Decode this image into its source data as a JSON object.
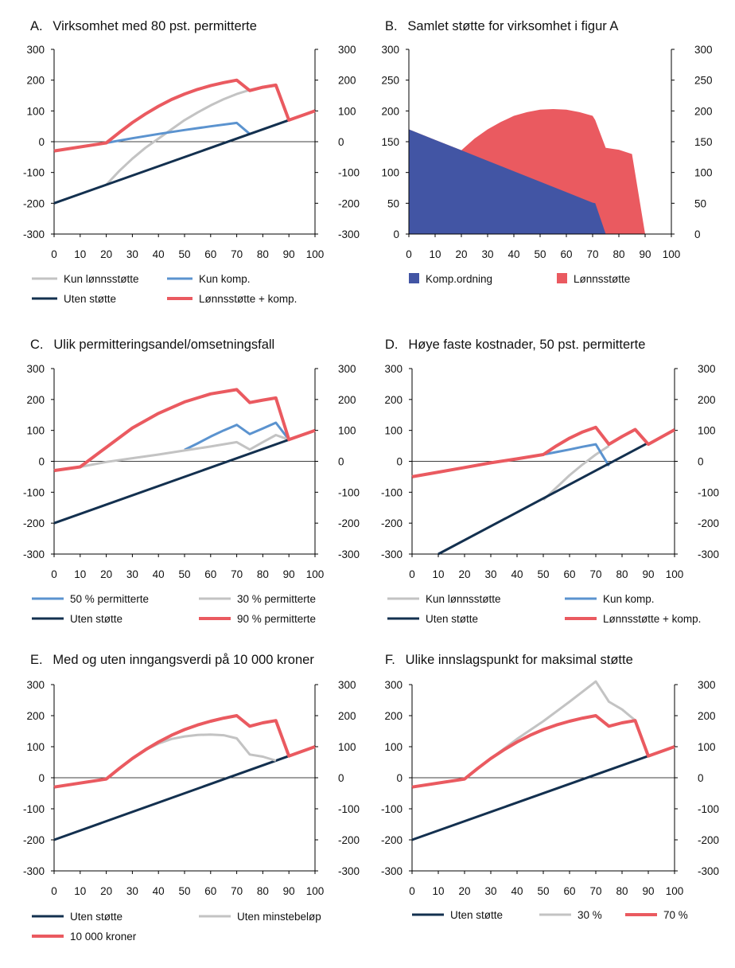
{
  "colors": {
    "light_blue": "#5b93cf",
    "gray": "#c3c3c3",
    "dark_navy": "#13304f",
    "red": "#ea5a60",
    "komp_blue": "#4255a4",
    "axis": "#000000"
  },
  "chart_data": [
    {
      "id": "A",
      "type": "line",
      "title": "A.  Virksomhet med 80 pst. permitterte",
      "x_ticks": [
        "0",
        "10",
        "20",
        "30",
        "40",
        "50",
        "60",
        "70",
        "80",
        "90",
        "100"
      ],
      "y_ticks_left": [
        "300",
        "200",
        "100",
        "0",
        "-100",
        "-200",
        "-300"
      ],
      "y_ticks_right": [
        "300",
        "200",
        "100",
        "0",
        "-100",
        "-200",
        "-300"
      ],
      "xlim": [
        0,
        100
      ],
      "ylim": [
        -300,
        300
      ],
      "zero_line": true,
      "series": [
        {
          "key": "s_gray",
          "name": "Kun lønnsstøtte",
          "color": "#c3c3c3",
          "x": [
            20,
            25,
            30,
            35,
            40,
            45,
            50,
            55,
            60,
            65,
            70,
            75,
            80,
            85,
            90
          ],
          "y": [
            -140,
            -95,
            -55,
            -20,
            10,
            40,
            70,
            95,
            118,
            138,
            155,
            168,
            178,
            182,
            70
          ]
        },
        {
          "key": "s_blue",
          "name": "Kun komp.",
          "color": "#5b93cf",
          "x": [
            20,
            30,
            40,
            50,
            60,
            70,
            75
          ],
          "y": [
            -4,
            11,
            25,
            38,
            50,
            61,
            25
          ]
        },
        {
          "key": "s_navy",
          "name": "Uten støtte",
          "color": "#13304f",
          "x": [
            0,
            100
          ],
          "y": [
            -200,
            100
          ]
        },
        {
          "key": "s_red",
          "name": "Lønnsstøtte + komp.",
          "color": "#ea5a60",
          "x": [
            0,
            20,
            25,
            30,
            35,
            40,
            45,
            50,
            55,
            60,
            65,
            70,
            75,
            80,
            85,
            90,
            100
          ],
          "y": [
            -30,
            -4,
            30,
            62,
            90,
            115,
            137,
            155,
            170,
            182,
            192,
            200,
            166,
            177,
            184,
            70,
            100
          ]
        }
      ],
      "legend": [
        {
          "key": "s_gray",
          "label": "Kun lønnsstøtte"
        },
        {
          "key": "s_blue",
          "label": "Kun komp."
        },
        {
          "key": "s_navy",
          "label": "Uten støtte"
        },
        {
          "key": "s_red",
          "label": "Lønnsstøtte + komp."
        }
      ]
    },
    {
      "id": "B",
      "type": "area",
      "title": "B.  Samlet støtte for virksomhet i figur A",
      "x_ticks": [
        "0",
        "10",
        "20",
        "30",
        "40",
        "50",
        "60",
        "70",
        "80",
        "90",
        "100"
      ],
      "y_ticks_left": [
        "300",
        "250",
        "200",
        "150",
        "100",
        "50",
        "0"
      ],
      "y_ticks_right": [
        "300",
        "250",
        "200",
        "150",
        "100",
        "50",
        "0"
      ],
      "xlim": [
        0,
        100
      ],
      "ylim": [
        0,
        300
      ],
      "zero_line": false,
      "series": [
        {
          "key": "s_komp",
          "name": "Komp.ordning",
          "color": "#4255a4",
          "x": [
            0,
            10,
            20,
            30,
            40,
            50,
            60,
            70,
            71,
            75
          ],
          "y": [
            170,
            153,
            136,
            119,
            102,
            85,
            68,
            51,
            50,
            0
          ]
        },
        {
          "key": "s_lonn",
          "name": "Lønnsstøtte",
          "color": "#ea5a60",
          "x": [
            0,
            10,
            20,
            25,
            30,
            35,
            40,
            45,
            50,
            55,
            60,
            65,
            70,
            71,
            75,
            80,
            85,
            90
          ],
          "y": [
            170,
            153,
            136,
            155,
            170,
            182,
            192,
            198,
            202,
            203,
            202,
            198,
            192,
            185,
            140,
            137,
            130,
            0
          ]
        }
      ],
      "legend": [
        {
          "key": "s_komp",
          "label": "Komp.ordning"
        },
        {
          "key": "s_lonn",
          "label": "Lønnsstøtte"
        }
      ]
    },
    {
      "id": "C",
      "type": "line",
      "title": "C.  Ulik permitteringsandel/omsetningsfall",
      "x_ticks": [
        "0",
        "10",
        "20",
        "30",
        "40",
        "50",
        "60",
        "70",
        "80",
        "90",
        "100"
      ],
      "y_ticks_left": [
        "300",
        "200",
        "100",
        "0",
        "-100",
        "-200",
        "-300"
      ],
      "y_ticks_right": [
        "300",
        "200",
        "100",
        "0",
        "-100",
        "-200",
        "-300"
      ],
      "xlim": [
        0,
        100
      ],
      "ylim": [
        -300,
        300
      ],
      "zero_line": true,
      "series": [
        {
          "key": "s_blue",
          "name": "50 % permitterte",
          "color": "#5b93cf",
          "x": [
            50,
            55,
            60,
            65,
            70,
            75,
            80,
            85,
            90
          ],
          "y": [
            37,
            58,
            80,
            100,
            118,
            88,
            106,
            125,
            70
          ]
        },
        {
          "key": "s_gray",
          "name": "30 % permitterte",
          "color": "#c3c3c3",
          "x": [
            10,
            20,
            30,
            40,
            50,
            60,
            70,
            75,
            80,
            85,
            90
          ],
          "y": [
            -18,
            -2,
            10,
            22,
            35,
            48,
            62,
            38,
            62,
            85,
            70
          ]
        },
        {
          "key": "s_navy",
          "name": "Uten støtte",
          "color": "#13304f",
          "x": [
            0,
            100
          ],
          "y": [
            -200,
            100
          ]
        },
        {
          "key": "s_red",
          "name": "90 % permitterte",
          "color": "#ea5a60",
          "x": [
            0,
            10,
            20,
            30,
            40,
            50,
            60,
            70,
            75,
            80,
            85,
            90,
            100
          ],
          "y": [
            -30,
            -18,
            45,
            108,
            155,
            192,
            218,
            232,
            190,
            198,
            205,
            70,
            100
          ]
        }
      ],
      "legend": [
        {
          "key": "s_blue",
          "label": "50 % permitterte"
        },
        {
          "key": "s_gray",
          "label": "30 % permitterte"
        },
        {
          "key": "s_navy",
          "label": "Uten støtte"
        },
        {
          "key": "s_red",
          "label": "90 % permitterte"
        }
      ]
    },
    {
      "id": "D",
      "type": "line",
      "title": "D.  Høye faste kostnader, 50 pst. permitterte",
      "x_ticks": [
        "0",
        "10",
        "20",
        "30",
        "40",
        "50",
        "60",
        "70",
        "80",
        "90",
        "100"
      ],
      "y_ticks_left": [
        "300",
        "200",
        "100",
        "0",
        "-100",
        "-200",
        "-300"
      ],
      "y_ticks_right": [
        "300",
        "200",
        "100",
        "0",
        "-100",
        "-200",
        "-300"
      ],
      "xlim": [
        0,
        100
      ],
      "ylim": [
        -300,
        300
      ],
      "zero_line": true,
      "series": [
        {
          "key": "s_gray",
          "name": "Kun lønnsstøtte",
          "color": "#c3c3c3",
          "x": [
            50,
            55,
            60,
            65,
            70,
            75
          ],
          "y": [
            -125,
            -85,
            -45,
            -10,
            22,
            50
          ]
        },
        {
          "key": "s_blue",
          "name": "Kun komp.",
          "color": "#5b93cf",
          "x": [
            50,
            55,
            60,
            65,
            70,
            75
          ],
          "y": [
            22,
            30,
            38,
            47,
            55,
            -15
          ]
        },
        {
          "key": "s_navy",
          "name": "Uten støtte",
          "color": "#13304f",
          "x": [
            10,
            90
          ],
          "y": [
            -300,
            60
          ]
        },
        {
          "key": "s_red",
          "name": "Lønnsstøtte + komp.",
          "color": "#ea5a60",
          "x": [
            0,
            10,
            20,
            30,
            40,
            50,
            55,
            60,
            65,
            70,
            75,
            80,
            85,
            90,
            100
          ],
          "y": [
            -50,
            -35,
            -20,
            -5,
            8,
            22,
            50,
            75,
            95,
            110,
            55,
            80,
            103,
            55,
            102
          ]
        }
      ],
      "legend": [
        {
          "key": "s_gray",
          "label": "Kun lønnsstøtte"
        },
        {
          "key": "s_blue",
          "label": "Kun komp."
        },
        {
          "key": "s_navy",
          "label": "Uten støtte"
        },
        {
          "key": "s_red",
          "label": "Lønnsstøtte + komp."
        }
      ]
    },
    {
      "id": "E",
      "type": "line",
      "title": "E.  Med og uten inngangsverdi på 10 000 kroner",
      "x_ticks": [
        "0",
        "10",
        "20",
        "30",
        "40",
        "50",
        "60",
        "70",
        "80",
        "90",
        "100"
      ],
      "y_ticks_left": [
        "300",
        "200",
        "100",
        "0",
        "-100",
        "-200",
        "-300"
      ],
      "y_ticks_right": [
        "300",
        "200",
        "100",
        "0",
        "-100",
        "-200",
        "-300"
      ],
      "xlim": [
        0,
        100
      ],
      "ylim": [
        -300,
        300
      ],
      "zero_line": true,
      "series": [
        {
          "key": "s_navy",
          "name": "Uten støtte",
          "color": "#13304f",
          "x": [
            0,
            100
          ],
          "y": [
            -200,
            100
          ]
        },
        {
          "key": "s_gray",
          "name": "Uten minstebeløp",
          "color": "#c3c3c3",
          "x": [
            20,
            30,
            35,
            40,
            45,
            50,
            55,
            60,
            65,
            70,
            75,
            80,
            85
          ],
          "y": [
            -4,
            62,
            90,
            110,
            125,
            133,
            138,
            139,
            137,
            127,
            75,
            68,
            55
          ]
        },
        {
          "key": "s_red",
          "name": "10 000 kroner",
          "color": "#ea5a60",
          "x": [
            0,
            20,
            25,
            30,
            35,
            40,
            45,
            50,
            55,
            60,
            65,
            70,
            75,
            80,
            85,
            90,
            100
          ],
          "y": [
            -30,
            -4,
            30,
            62,
            90,
            115,
            137,
            155,
            170,
            182,
            192,
            200,
            166,
            177,
            184,
            70,
            100
          ]
        }
      ],
      "legend": [
        {
          "key": "s_navy",
          "label": "Uten støtte"
        },
        {
          "key": "s_gray",
          "label": "Uten minstebeløp"
        },
        {
          "key": "s_red",
          "label": "10 000 kroner"
        }
      ]
    },
    {
      "id": "F",
      "type": "line",
      "title": "F.  Ulike innslagspunkt for maksimal støtte",
      "x_ticks": [
        "0",
        "10",
        "20",
        "30",
        "40",
        "50",
        "60",
        "70",
        "80",
        "90",
        "100"
      ],
      "y_ticks_left": [
        "300",
        "200",
        "100",
        "0",
        "-100",
        "-200",
        "-300"
      ],
      "y_ticks_right": [
        "300",
        "200",
        "100",
        "0",
        "-100",
        "-200",
        "-300"
      ],
      "xlim": [
        0,
        100
      ],
      "ylim": [
        -300,
        300
      ],
      "zero_line": true,
      "series": [
        {
          "key": "s_navy",
          "name": "Uten støtte",
          "color": "#13304f",
          "x": [
            0,
            100
          ],
          "y": [
            -200,
            100
          ]
        },
        {
          "key": "s_gray",
          "name": "30 %",
          "color": "#c3c3c3",
          "x": [
            20,
            30,
            40,
            50,
            60,
            70,
            75,
            80,
            85,
            90
          ],
          "y": [
            -4,
            62,
            125,
            182,
            245,
            310,
            245,
            220,
            185,
            70
          ]
        },
        {
          "key": "s_red",
          "name": "70 %",
          "color": "#ea5a60",
          "x": [
            0,
            20,
            25,
            30,
            35,
            40,
            45,
            50,
            55,
            60,
            65,
            70,
            75,
            80,
            85,
            90,
            100
          ],
          "y": [
            -30,
            -4,
            30,
            62,
            90,
            115,
            137,
            155,
            170,
            182,
            192,
            200,
            166,
            177,
            184,
            70,
            100
          ]
        }
      ],
      "legend": [
        {
          "key": "s_navy",
          "label": "Uten støtte"
        },
        {
          "key": "s_gray",
          "label": "30 %"
        },
        {
          "key": "s_red",
          "label": "70 %"
        }
      ]
    }
  ]
}
